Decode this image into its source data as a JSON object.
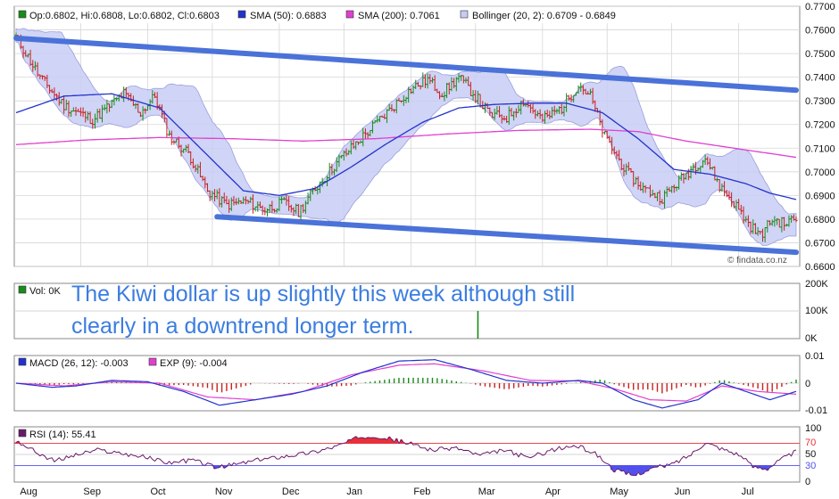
{
  "colors": {
    "price_up": "#1a8a1a",
    "price_down": "#c82020",
    "sma50": "#2233cc",
    "sma200": "#e040d0",
    "bollinger_fill": "#c8ccf4",
    "trendline": "#4a72d8",
    "annotation": "#3b7de0",
    "macd_line": "#2233cc",
    "exp_line": "#e040d0",
    "rsi_line": "#6a1a6a",
    "rsi_over": "#e8303a",
    "rsi_under": "#5050ee",
    "grid": "#d6d6d6"
  },
  "annotation": {
    "line1": "The Kiwi dollar is up slightly this week although still",
    "line2": "clearly in a downtrend longer term."
  },
  "watermark": "© findata.co.nz",
  "chart_data": [
    {
      "type": "ohlc",
      "panel": "price",
      "legend": {
        "ohlc": "Op:0.6802, Hi:0.6808, Lo:0.6802, Cl:0.6803",
        "sma50": "SMA (50): 0.6883",
        "sma200": "SMA (200): 0.7061",
        "bollinger": "Bollinger (20, 2): 0.6709 - 0.6849"
      },
      "legend_placement": "top",
      "ylim": [
        0.66,
        0.77
      ],
      "yticks": [
        "0.6600",
        "0.6700",
        "0.6800",
        "0.6900",
        "0.7000",
        "0.7100",
        "0.7200",
        "0.7300",
        "0.7400",
        "0.7500",
        "0.7600",
        "0.7700"
      ],
      "xticks": [
        "Aug",
        "Sep",
        "Oct",
        "Nov",
        "Dec",
        "Jan",
        "Feb",
        "Mar",
        "Apr",
        "May",
        "Jun",
        "Jul"
      ],
      "grid": true,
      "close_anchors": [
        [
          0,
          0.757
        ],
        [
          10,
          0.74
        ],
        [
          20,
          0.728
        ],
        [
          32,
          0.722
        ],
        [
          45,
          0.733
        ],
        [
          52,
          0.725
        ],
        [
          58,
          0.732
        ],
        [
          64,
          0.715
        ],
        [
          72,
          0.708
        ],
        [
          80,
          0.692
        ],
        [
          88,
          0.686
        ],
        [
          96,
          0.6875
        ],
        [
          104,
          0.684
        ],
        [
          112,
          0.687
        ],
        [
          118,
          0.683
        ],
        [
          125,
          0.693
        ],
        [
          135,
          0.705
        ],
        [
          145,
          0.715
        ],
        [
          155,
          0.725
        ],
        [
          165,
          0.735
        ],
        [
          172,
          0.739
        ],
        [
          178,
          0.733
        ],
        [
          185,
          0.74
        ],
        [
          192,
          0.732
        ],
        [
          198,
          0.724
        ],
        [
          205,
          0.723
        ],
        [
          212,
          0.73
        ],
        [
          220,
          0.722
        ],
        [
          228,
          0.727
        ],
        [
          235,
          0.737
        ],
        [
          240,
          0.732
        ],
        [
          246,
          0.715
        ],
        [
          255,
          0.7
        ],
        [
          262,
          0.693
        ],
        [
          270,
          0.689
        ],
        [
          276,
          0.695
        ],
        [
          282,
          0.701
        ],
        [
          288,
          0.706
        ],
        [
          294,
          0.694
        ],
        [
          300,
          0.687
        ],
        [
          306,
          0.678
        ],
        [
          311,
          0.673
        ],
        [
          316,
          0.68
        ],
        [
          321,
          0.678
        ],
        [
          326,
          0.6803
        ]
      ],
      "sma50_anchors": [
        [
          0,
          0.725
        ],
        [
          20,
          0.732
        ],
        [
          40,
          0.733
        ],
        [
          60,
          0.727
        ],
        [
          80,
          0.707
        ],
        [
          95,
          0.692
        ],
        [
          110,
          0.69
        ],
        [
          125,
          0.693
        ],
        [
          140,
          0.702
        ],
        [
          155,
          0.712
        ],
        [
          170,
          0.721
        ],
        [
          185,
          0.727
        ],
        [
          200,
          0.7285
        ],
        [
          215,
          0.729
        ],
        [
          230,
          0.729
        ],
        [
          245,
          0.725
        ],
        [
          260,
          0.714
        ],
        [
          275,
          0.701
        ],
        [
          290,
          0.699
        ],
        [
          305,
          0.695
        ],
        [
          315,
          0.691
        ],
        [
          326,
          0.6883
        ]
      ],
      "sma200_anchors": [
        [
          0,
          0.7115
        ],
        [
          30,
          0.7135
        ],
        [
          60,
          0.7145
        ],
        [
          90,
          0.714
        ],
        [
          120,
          0.713
        ],
        [
          150,
          0.714
        ],
        [
          180,
          0.716
        ],
        [
          210,
          0.7175
        ],
        [
          240,
          0.718
        ],
        [
          260,
          0.717
        ],
        [
          280,
          0.713
        ],
        [
          300,
          0.71
        ],
        [
          326,
          0.7061
        ]
      ],
      "trendlines": [
        {
          "from": [
            0,
            0.7565
          ],
          "to": [
            326,
            0.7345
          ]
        },
        {
          "from": [
            84,
            0.681
          ],
          "to": [
            326,
            0.666
          ]
        }
      ]
    },
    {
      "type": "bar",
      "panel": "volume",
      "legend": "Vol: 0K",
      "yticks": [
        "200K",
        "100K",
        "0K"
      ],
      "ylim": [
        0,
        200
      ],
      "bars": [
        {
          "x": 193,
          "value": 100
        }
      ]
    },
    {
      "type": "line",
      "panel": "macd",
      "legend": {
        "macd": "MACD (26, 12): -0.003",
        "exp": "EXP (9): -0.004"
      },
      "ylim": [
        -0.01,
        0.01
      ],
      "yticks": [
        "0.01",
        "0",
        "-0.01"
      ],
      "macd_anchors": [
        [
          0,
          0.0
        ],
        [
          15,
          -0.0015
        ],
        [
          25,
          -0.001
        ],
        [
          40,
          0.001
        ],
        [
          55,
          0.0005
        ],
        [
          70,
          -0.003
        ],
        [
          85,
          -0.008
        ],
        [
          100,
          -0.006
        ],
        [
          115,
          -0.004
        ],
        [
          130,
          -0.001
        ],
        [
          145,
          0.004
        ],
        [
          160,
          0.008
        ],
        [
          175,
          0.0085
        ],
        [
          190,
          0.005
        ],
        [
          205,
          0.001
        ],
        [
          220,
          0.0
        ],
        [
          235,
          0.001
        ],
        [
          245,
          0.0
        ],
        [
          258,
          -0.006
        ],
        [
          270,
          -0.009
        ],
        [
          285,
          -0.006
        ],
        [
          295,
          0.0
        ],
        [
          305,
          -0.003
        ],
        [
          315,
          -0.006
        ],
        [
          326,
          -0.003
        ]
      ],
      "exp_anchors": [
        [
          0,
          0.0
        ],
        [
          20,
          -0.001
        ],
        [
          40,
          0.0005
        ],
        [
          60,
          0.0
        ],
        [
          80,
          -0.005
        ],
        [
          100,
          -0.006
        ],
        [
          120,
          -0.003
        ],
        [
          140,
          0.003
        ],
        [
          160,
          0.0065
        ],
        [
          175,
          0.007
        ],
        [
          195,
          0.0045
        ],
        [
          215,
          0.001
        ],
        [
          235,
          0.0008
        ],
        [
          250,
          -0.002
        ],
        [
          265,
          -0.006
        ],
        [
          280,
          -0.0065
        ],
        [
          295,
          -0.001
        ],
        [
          310,
          -0.003
        ],
        [
          326,
          -0.004
        ]
      ]
    },
    {
      "type": "line",
      "panel": "rsi",
      "legend": "RSI (14): 55.41",
      "ylim": [
        0,
        100
      ],
      "yticks": [
        "100",
        "70",
        "50",
        "30",
        "0"
      ],
      "levels": [
        70,
        30
      ],
      "rsi_anchors": [
        [
          0,
          75
        ],
        [
          8,
          55
        ],
        [
          16,
          38
        ],
        [
          24,
          48
        ],
        [
          34,
          58
        ],
        [
          44,
          52
        ],
        [
          54,
          45
        ],
        [
          64,
          35
        ],
        [
          74,
          40
        ],
        [
          84,
          26
        ],
        [
          94,
          34
        ],
        [
          104,
          42
        ],
        [
          114,
          48
        ],
        [
          124,
          54
        ],
        [
          134,
          65
        ],
        [
          144,
          82
        ],
        [
          150,
          84
        ],
        [
          156,
          78
        ],
        [
          164,
          70
        ],
        [
          174,
          58
        ],
        [
          184,
          62
        ],
        [
          194,
          48
        ],
        [
          204,
          58
        ],
        [
          214,
          44
        ],
        [
          224,
          58
        ],
        [
          234,
          66
        ],
        [
          242,
          52
        ],
        [
          250,
          22
        ],
        [
          258,
          12
        ],
        [
          266,
          25
        ],
        [
          274,
          32
        ],
        [
          282,
          50
        ],
        [
          288,
          72
        ],
        [
          294,
          62
        ],
        [
          302,
          50
        ],
        [
          308,
          28
        ],
        [
          314,
          25
        ],
        [
          320,
          42
        ],
        [
          326,
          55
        ]
      ]
    }
  ]
}
